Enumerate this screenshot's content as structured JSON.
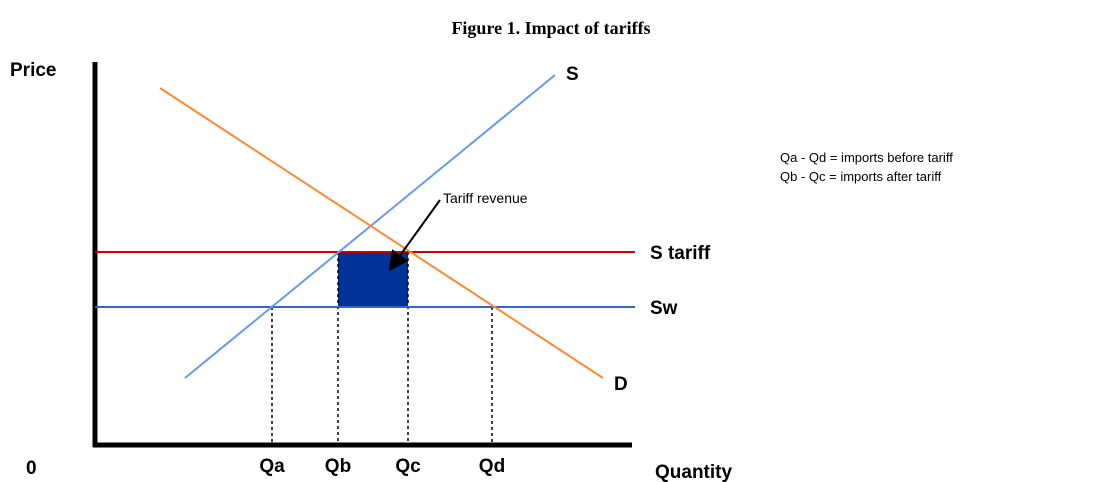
{
  "title": "Figure 1. Impact of tariffs",
  "axes": {
    "y_label": "Price",
    "x_label": "Quantity",
    "origin": "0"
  },
  "curves": {
    "supply": "S",
    "demand": "D",
    "supply_tariff": "S tariff",
    "world_supply": "Sw"
  },
  "quantities": [
    "Qa",
    "Qb",
    "Qc",
    "Qd"
  ],
  "annotation": "Tariff revenue",
  "notes": [
    "Qa - Qd = imports before tariff",
    "Qb - Qc = imports after tariff"
  ]
}
